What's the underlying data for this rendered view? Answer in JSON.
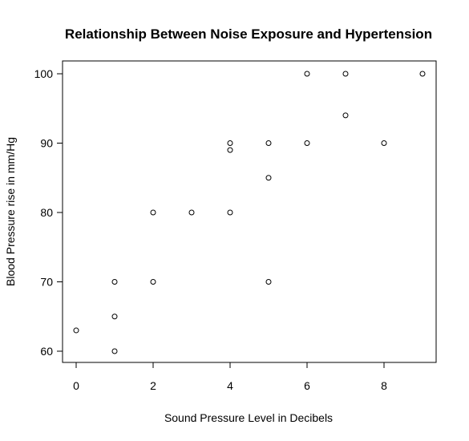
{
  "chart_data": {
    "type": "scatter",
    "title": "Relationship Between Noise Exposure and Hypertension",
    "xlabel": "Sound Pressure Level in Decibels",
    "ylabel": "Blood Pressure rise in mm/Hg",
    "xlim": [
      0,
      9
    ],
    "ylim": [
      60,
      100
    ],
    "x_ticks": [
      0,
      2,
      4,
      6,
      8
    ],
    "y_ticks": [
      60,
      70,
      80,
      90,
      100
    ],
    "grid": false,
    "marker": "open-circle",
    "points": [
      {
        "x": 0,
        "y": 63
      },
      {
        "x": 1,
        "y": 70
      },
      {
        "x": 1,
        "y": 65
      },
      {
        "x": 1,
        "y": 60
      },
      {
        "x": 2,
        "y": 80
      },
      {
        "x": 2,
        "y": 70
      },
      {
        "x": 3,
        "y": 80
      },
      {
        "x": 4,
        "y": 90
      },
      {
        "x": 4,
        "y": 89
      },
      {
        "x": 4,
        "y": 80
      },
      {
        "x": 5,
        "y": 90
      },
      {
        "x": 5,
        "y": 85
      },
      {
        "x": 5,
        "y": 70
      },
      {
        "x": 6,
        "y": 100
      },
      {
        "x": 6,
        "y": 90
      },
      {
        "x": 7,
        "y": 100
      },
      {
        "x": 7,
        "y": 94
      },
      {
        "x": 8,
        "y": 90
      },
      {
        "x": 9,
        "y": 100
      }
    ]
  }
}
